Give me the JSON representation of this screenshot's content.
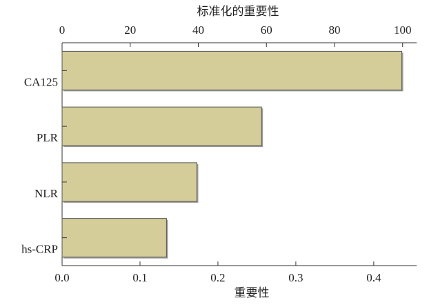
{
  "chart_data": {
    "type": "bar",
    "orientation": "horizontal",
    "xlabel": "重要性",
    "x2label": "标准化的重要性",
    "categories": [
      "CA125",
      "PLR",
      "NLR",
      "hs-CRP"
    ],
    "values": [
      0.436,
      0.256,
      0.173,
      0.134
    ],
    "color": "#d5cd99",
    "xlim": [
      0,
      0.455
    ],
    "xticks": [
      {
        "value": 0,
        "label": "0.0"
      },
      0.1,
      0.2,
      0.3,
      0.4
    ],
    "x2lim": [
      0,
      104.1
    ],
    "x2ticks": [
      0,
      20,
      40,
      60,
      80,
      100
    ],
    "grid": false
  }
}
